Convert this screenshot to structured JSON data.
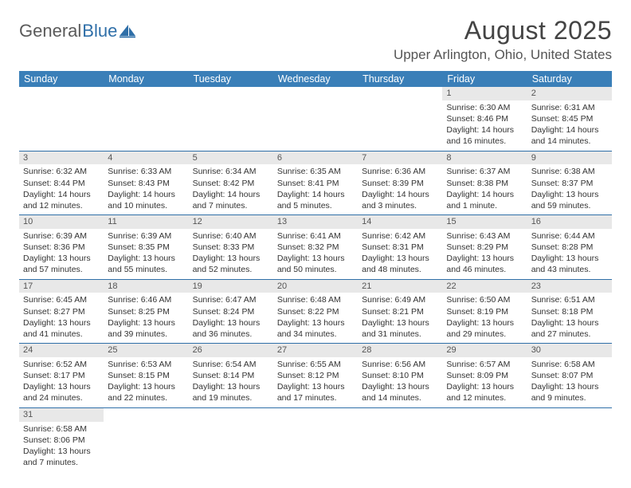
{
  "logo": {
    "text1": "General",
    "text2": "Blue"
  },
  "title": "August 2025",
  "location": "Upper Arlington, Ohio, United States",
  "colors": {
    "header_bg": "#3a7fb8",
    "header_text": "#ffffff",
    "daynum_bg": "#e8e8e8",
    "border": "#2f6fa8",
    "logo_gray": "#5a5a5a",
    "logo_blue": "#2f6fa8"
  },
  "day_headers": [
    "Sunday",
    "Monday",
    "Tuesday",
    "Wednesday",
    "Thursday",
    "Friday",
    "Saturday"
  ],
  "weeks": [
    [
      null,
      null,
      null,
      null,
      null,
      {
        "n": "1",
        "sr": "Sunrise: 6:30 AM",
        "ss": "Sunset: 8:46 PM",
        "dl1": "Daylight: 14 hours",
        "dl2": "and 16 minutes."
      },
      {
        "n": "2",
        "sr": "Sunrise: 6:31 AM",
        "ss": "Sunset: 8:45 PM",
        "dl1": "Daylight: 14 hours",
        "dl2": "and 14 minutes."
      }
    ],
    [
      {
        "n": "3",
        "sr": "Sunrise: 6:32 AM",
        "ss": "Sunset: 8:44 PM",
        "dl1": "Daylight: 14 hours",
        "dl2": "and 12 minutes."
      },
      {
        "n": "4",
        "sr": "Sunrise: 6:33 AM",
        "ss": "Sunset: 8:43 PM",
        "dl1": "Daylight: 14 hours",
        "dl2": "and 10 minutes."
      },
      {
        "n": "5",
        "sr": "Sunrise: 6:34 AM",
        "ss": "Sunset: 8:42 PM",
        "dl1": "Daylight: 14 hours",
        "dl2": "and 7 minutes."
      },
      {
        "n": "6",
        "sr": "Sunrise: 6:35 AM",
        "ss": "Sunset: 8:41 PM",
        "dl1": "Daylight: 14 hours",
        "dl2": "and 5 minutes."
      },
      {
        "n": "7",
        "sr": "Sunrise: 6:36 AM",
        "ss": "Sunset: 8:39 PM",
        "dl1": "Daylight: 14 hours",
        "dl2": "and 3 minutes."
      },
      {
        "n": "8",
        "sr": "Sunrise: 6:37 AM",
        "ss": "Sunset: 8:38 PM",
        "dl1": "Daylight: 14 hours",
        "dl2": "and 1 minute."
      },
      {
        "n": "9",
        "sr": "Sunrise: 6:38 AM",
        "ss": "Sunset: 8:37 PM",
        "dl1": "Daylight: 13 hours",
        "dl2": "and 59 minutes."
      }
    ],
    [
      {
        "n": "10",
        "sr": "Sunrise: 6:39 AM",
        "ss": "Sunset: 8:36 PM",
        "dl1": "Daylight: 13 hours",
        "dl2": "and 57 minutes."
      },
      {
        "n": "11",
        "sr": "Sunrise: 6:39 AM",
        "ss": "Sunset: 8:35 PM",
        "dl1": "Daylight: 13 hours",
        "dl2": "and 55 minutes."
      },
      {
        "n": "12",
        "sr": "Sunrise: 6:40 AM",
        "ss": "Sunset: 8:33 PM",
        "dl1": "Daylight: 13 hours",
        "dl2": "and 52 minutes."
      },
      {
        "n": "13",
        "sr": "Sunrise: 6:41 AM",
        "ss": "Sunset: 8:32 PM",
        "dl1": "Daylight: 13 hours",
        "dl2": "and 50 minutes."
      },
      {
        "n": "14",
        "sr": "Sunrise: 6:42 AM",
        "ss": "Sunset: 8:31 PM",
        "dl1": "Daylight: 13 hours",
        "dl2": "and 48 minutes."
      },
      {
        "n": "15",
        "sr": "Sunrise: 6:43 AM",
        "ss": "Sunset: 8:29 PM",
        "dl1": "Daylight: 13 hours",
        "dl2": "and 46 minutes."
      },
      {
        "n": "16",
        "sr": "Sunrise: 6:44 AM",
        "ss": "Sunset: 8:28 PM",
        "dl1": "Daylight: 13 hours",
        "dl2": "and 43 minutes."
      }
    ],
    [
      {
        "n": "17",
        "sr": "Sunrise: 6:45 AM",
        "ss": "Sunset: 8:27 PM",
        "dl1": "Daylight: 13 hours",
        "dl2": "and 41 minutes."
      },
      {
        "n": "18",
        "sr": "Sunrise: 6:46 AM",
        "ss": "Sunset: 8:25 PM",
        "dl1": "Daylight: 13 hours",
        "dl2": "and 39 minutes."
      },
      {
        "n": "19",
        "sr": "Sunrise: 6:47 AM",
        "ss": "Sunset: 8:24 PM",
        "dl1": "Daylight: 13 hours",
        "dl2": "and 36 minutes."
      },
      {
        "n": "20",
        "sr": "Sunrise: 6:48 AM",
        "ss": "Sunset: 8:22 PM",
        "dl1": "Daylight: 13 hours",
        "dl2": "and 34 minutes."
      },
      {
        "n": "21",
        "sr": "Sunrise: 6:49 AM",
        "ss": "Sunset: 8:21 PM",
        "dl1": "Daylight: 13 hours",
        "dl2": "and 31 minutes."
      },
      {
        "n": "22",
        "sr": "Sunrise: 6:50 AM",
        "ss": "Sunset: 8:19 PM",
        "dl1": "Daylight: 13 hours",
        "dl2": "and 29 minutes."
      },
      {
        "n": "23",
        "sr": "Sunrise: 6:51 AM",
        "ss": "Sunset: 8:18 PM",
        "dl1": "Daylight: 13 hours",
        "dl2": "and 27 minutes."
      }
    ],
    [
      {
        "n": "24",
        "sr": "Sunrise: 6:52 AM",
        "ss": "Sunset: 8:17 PM",
        "dl1": "Daylight: 13 hours",
        "dl2": "and 24 minutes."
      },
      {
        "n": "25",
        "sr": "Sunrise: 6:53 AM",
        "ss": "Sunset: 8:15 PM",
        "dl1": "Daylight: 13 hours",
        "dl2": "and 22 minutes."
      },
      {
        "n": "26",
        "sr": "Sunrise: 6:54 AM",
        "ss": "Sunset: 8:14 PM",
        "dl1": "Daylight: 13 hours",
        "dl2": "and 19 minutes."
      },
      {
        "n": "27",
        "sr": "Sunrise: 6:55 AM",
        "ss": "Sunset: 8:12 PM",
        "dl1": "Daylight: 13 hours",
        "dl2": "and 17 minutes."
      },
      {
        "n": "28",
        "sr": "Sunrise: 6:56 AM",
        "ss": "Sunset: 8:10 PM",
        "dl1": "Daylight: 13 hours",
        "dl2": "and 14 minutes."
      },
      {
        "n": "29",
        "sr": "Sunrise: 6:57 AM",
        "ss": "Sunset: 8:09 PM",
        "dl1": "Daylight: 13 hours",
        "dl2": "and 12 minutes."
      },
      {
        "n": "30",
        "sr": "Sunrise: 6:58 AM",
        "ss": "Sunset: 8:07 PM",
        "dl1": "Daylight: 13 hours",
        "dl2": "and 9 minutes."
      }
    ],
    [
      {
        "n": "31",
        "sr": "Sunrise: 6:58 AM",
        "ss": "Sunset: 8:06 PM",
        "dl1": "Daylight: 13 hours",
        "dl2": "and 7 minutes."
      },
      null,
      null,
      null,
      null,
      null,
      null
    ]
  ]
}
